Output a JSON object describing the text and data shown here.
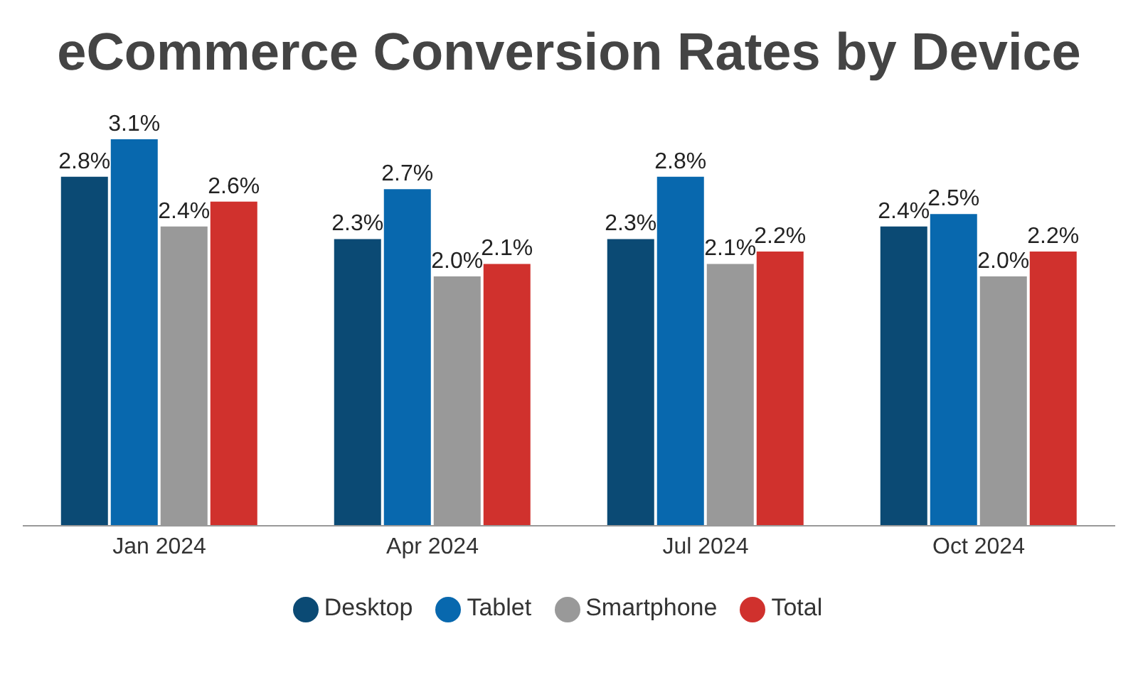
{
  "chart_data": {
    "type": "bar",
    "title": "eCommerce Conversion Rates by Device",
    "categories": [
      "Jan 2024",
      "Apr 2024",
      "Jul 2024",
      "Oct 2024"
    ],
    "series": [
      {
        "name": "Desktop",
        "color": "#0b4a74",
        "values": [
          2.8,
          2.3,
          2.3,
          2.4
        ],
        "value_labels": [
          "2.8%",
          "2.3%",
          "2.3%",
          "2.4%"
        ]
      },
      {
        "name": "Tablet",
        "color": "#0868ae",
        "values": [
          3.1,
          2.7,
          2.8,
          2.5
        ],
        "value_labels": [
          "3.1%",
          "2.7%",
          "2.8%",
          "2.5%"
        ]
      },
      {
        "name": "Smartphone",
        "color": "#999999",
        "values": [
          2.4,
          2.0,
          2.1,
          2.0
        ],
        "value_labels": [
          "2.4%",
          "2.0%",
          "2.1%",
          "2.0%"
        ]
      },
      {
        "name": "Total",
        "color": "#d0312d",
        "values": [
          2.6,
          2.1,
          2.2,
          2.2
        ],
        "value_labels": [
          "2.6%",
          "2.1%",
          "2.2%",
          "2.2%"
        ]
      }
    ],
    "legend": "bottom",
    "grid": false
  }
}
